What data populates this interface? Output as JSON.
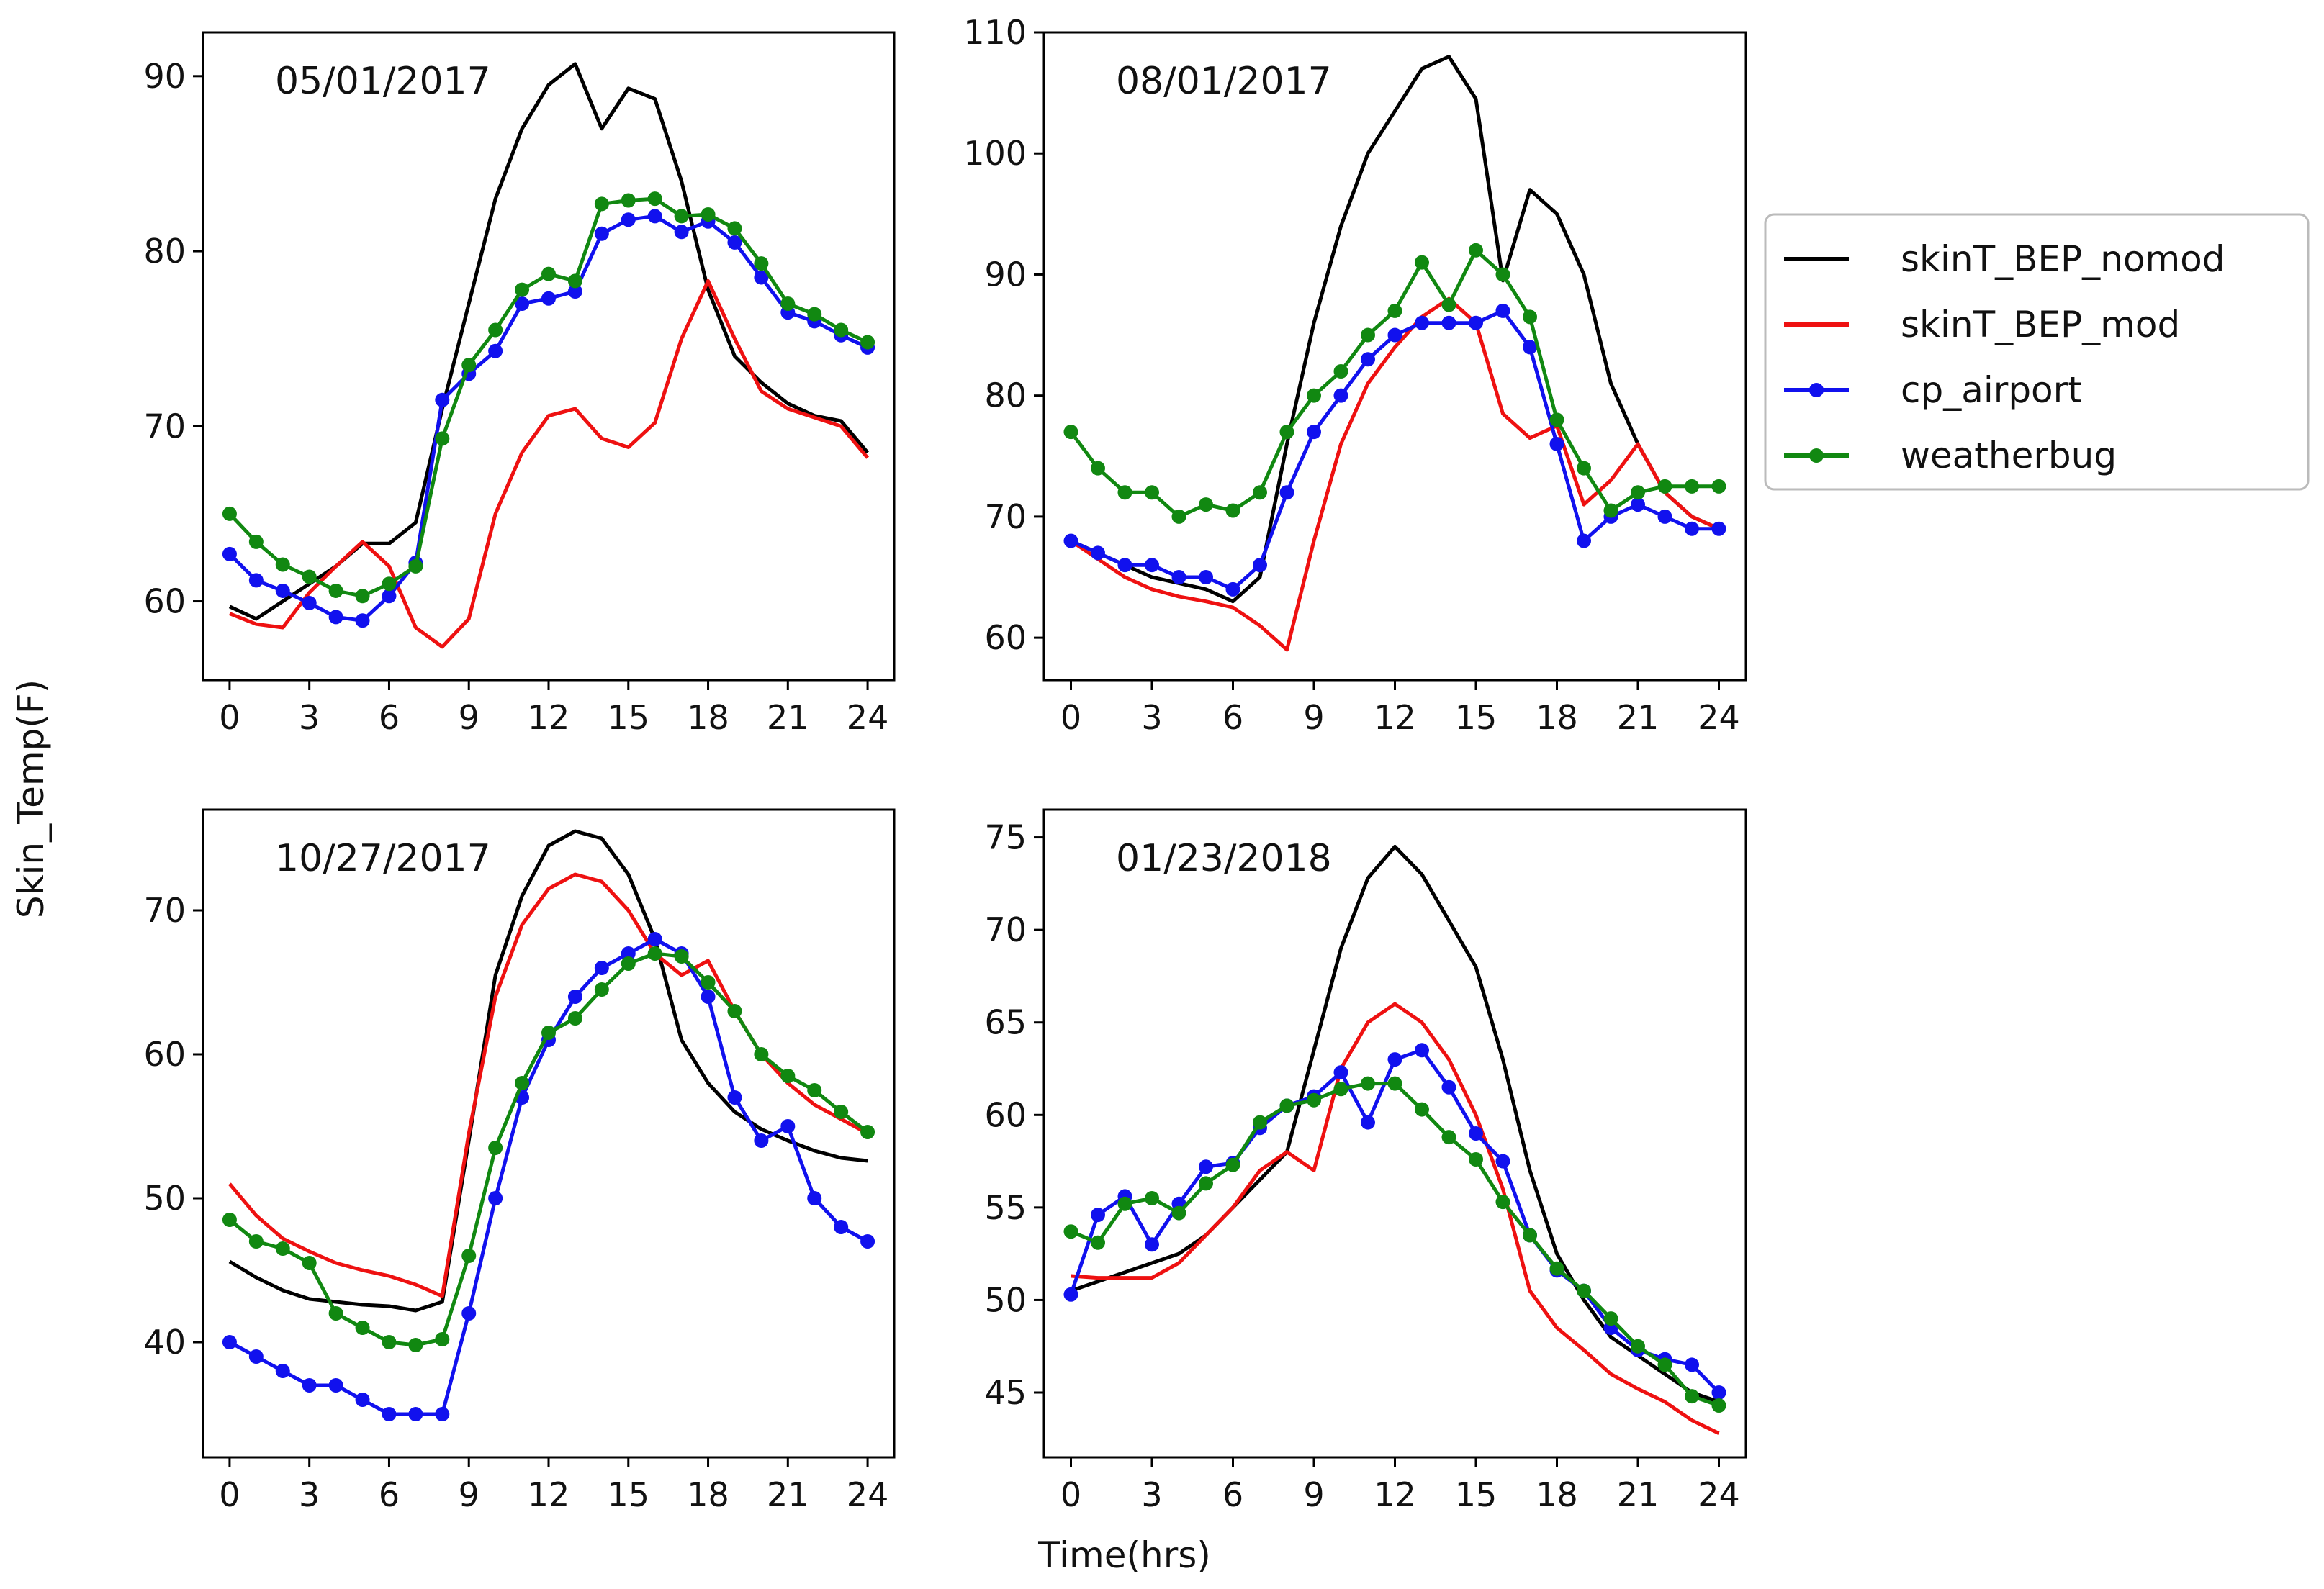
{
  "figure": {
    "ylabel": "Skin_Temp(F)",
    "xlabel": "Time(hrs)"
  },
  "legend": {
    "placement": "right",
    "entries": [
      {
        "name": "skinT_BEP_nomod",
        "color": "#000000",
        "markers": false
      },
      {
        "name": "skinT_BEP_mod",
        "color": "#ee1111",
        "markers": false
      },
      {
        "name": "cp_airport",
        "color": "#1111ee",
        "markers": true
      },
      {
        "name": "weatherbug",
        "color": "#118811",
        "markers": true
      }
    ]
  },
  "chart_data": [
    {
      "type": "line",
      "title": "05/01/2017",
      "xlabel": "",
      "ylabel": "",
      "xlim": [
        -1,
        25
      ],
      "ylim": [
        55.5,
        92.5
      ],
      "xticks": [
        0,
        3,
        6,
        9,
        12,
        15,
        18,
        21,
        24
      ],
      "yticks": [
        60,
        70,
        80,
        90
      ],
      "x": [
        0,
        1,
        2,
        3,
        4,
        5,
        6,
        7,
        8,
        9,
        10,
        11,
        12,
        13,
        14,
        15,
        16,
        17,
        18,
        19,
        20,
        21,
        22,
        23,
        24
      ],
      "series": [
        {
          "name": "skinT_BEP_nomod",
          "values": [
            59.7,
            59.0,
            60.0,
            61.0,
            62.0,
            63.3,
            63.3,
            64.5,
            71.0,
            77.0,
            83.0,
            87.0,
            89.5,
            90.7,
            87.0,
            89.3,
            88.7,
            84.0,
            77.8,
            74.0,
            72.5,
            71.3,
            70.6,
            70.3,
            68.5
          ]
        },
        {
          "name": "skinT_BEP_mod",
          "values": [
            59.3,
            58.7,
            58.5,
            60.5,
            62.0,
            63.4,
            62.0,
            58.5,
            57.4,
            59.0,
            65.0,
            68.5,
            70.6,
            71.0,
            69.3,
            68.8,
            70.2,
            75.0,
            78.3,
            75.0,
            72.0,
            71.0,
            70.5,
            70.0,
            68.2
          ]
        },
        {
          "name": "cp_airport",
          "values": [
            62.7,
            61.2,
            60.6,
            59.9,
            59.1,
            58.9,
            60.3,
            62.2,
            71.5,
            73.0,
            74.3,
            77.0,
            77.3,
            77.7,
            81.0,
            81.8,
            82.0,
            81.1,
            81.7,
            80.5,
            78.5,
            76.5,
            76.0,
            75.2,
            74.5
          ]
        },
        {
          "name": "weatherbug",
          "values": [
            65.0,
            63.4,
            62.1,
            61.4,
            60.6,
            60.3,
            61.0,
            62.0,
            69.3,
            73.5,
            75.5,
            77.8,
            78.7,
            78.3,
            82.7,
            82.9,
            83.0,
            82.0,
            82.1,
            81.3,
            79.3,
            77.0,
            76.4,
            75.5,
            74.8
          ]
        }
      ]
    },
    {
      "type": "line",
      "title": "08/01/2017",
      "xlabel": "",
      "ylabel": "",
      "xlim": [
        -1,
        25
      ],
      "ylim": [
        56.5,
        110
      ],
      "xticks": [
        0,
        3,
        6,
        9,
        12,
        15,
        18,
        21,
        24
      ],
      "yticks": [
        60,
        70,
        80,
        90,
        100,
        110
      ],
      "x": [
        0,
        1,
        2,
        3,
        4,
        5,
        6,
        7,
        8,
        9,
        10,
        11,
        12,
        13,
        14,
        15,
        16,
        17,
        18,
        19,
        20,
        21,
        22,
        23,
        24
      ],
      "series": [
        {
          "name": "skinT_BEP_nomod",
          "values": [
            68.0,
            67.0,
            66.0,
            65.0,
            64.5,
            64.0,
            63.0,
            65.0,
            76.0,
            86.0,
            94.0,
            100.0,
            103.5,
            107.0,
            108.0,
            104.5,
            89.5,
            97.0,
            95.0,
            90.0,
            81.0,
            76.0,
            72.0,
            70.0,
            69.0
          ]
        },
        {
          "name": "skinT_BEP_mod",
          "values": [
            68.0,
            66.5,
            65.0,
            64.0,
            63.4,
            63.0,
            62.5,
            61.0,
            59.0,
            68.0,
            76.0,
            81.0,
            84.0,
            86.5,
            88.0,
            86.0,
            78.5,
            76.5,
            77.5,
            71.0,
            73.0,
            76.0,
            72.0,
            70.0,
            69.0
          ]
        },
        {
          "name": "cp_airport",
          "values": [
            68.0,
            67.0,
            66.0,
            66.0,
            65.0,
            65.0,
            64.0,
            66.0,
            72.0,
            77.0,
            80.0,
            83.0,
            85.0,
            86.0,
            86.0,
            86.0,
            87.0,
            84.0,
            76.0,
            68.0,
            70.0,
            71.0,
            70.0,
            69.0,
            69.0
          ]
        },
        {
          "name": "weatherbug",
          "values": [
            77.0,
            74.0,
            72.0,
            72.0,
            70.0,
            71.0,
            70.5,
            72.0,
            77.0,
            80.0,
            82.0,
            85.0,
            87.0,
            91.0,
            87.5,
            92.0,
            90.0,
            86.5,
            78.0,
            74.0,
            70.5,
            72.0,
            72.5,
            72.5,
            72.5
          ]
        }
      ]
    },
    {
      "type": "line",
      "title": "10/27/2017",
      "xlabel": "Time(hrs)",
      "ylabel": "",
      "xlim": [
        -1,
        25
      ],
      "ylim": [
        32,
        77
      ],
      "xticks": [
        0,
        3,
        6,
        9,
        12,
        15,
        18,
        21,
        24
      ],
      "yticks": [
        40,
        50,
        60,
        70
      ],
      "x": [
        0,
        1,
        2,
        3,
        4,
        5,
        6,
        7,
        8,
        9,
        10,
        11,
        12,
        13,
        14,
        15,
        16,
        17,
        18,
        19,
        20,
        21,
        22,
        23,
        24
      ],
      "series": [
        {
          "name": "skinT_BEP_nomod",
          "values": [
            45.6,
            44.5,
            43.6,
            43.0,
            42.8,
            42.6,
            42.5,
            42.2,
            42.8,
            54.0,
            65.5,
            71.0,
            74.5,
            75.5,
            75.0,
            72.5,
            68.0,
            61.0,
            58.0,
            56.0,
            54.8,
            54.0,
            53.3,
            52.8,
            52.6
          ]
        },
        {
          "name": "skinT_BEP_mod",
          "values": [
            51.0,
            48.8,
            47.2,
            46.3,
            45.5,
            45.0,
            44.6,
            44.0,
            43.2,
            54.5,
            64.0,
            69.0,
            71.5,
            72.5,
            72.0,
            70.0,
            67.0,
            65.5,
            66.5,
            63.0,
            60.0,
            58.0,
            56.5,
            55.5,
            54.5
          ]
        },
        {
          "name": "cp_airport",
          "values": [
            40.0,
            39.0,
            38.0,
            37.0,
            37.0,
            36.0,
            35.0,
            35.0,
            35.0,
            42.0,
            50.0,
            57.0,
            61.0,
            64.0,
            66.0,
            67.0,
            68.0,
            67.0,
            64.0,
            57.0,
            54.0,
            55.0,
            50.0,
            48.0,
            47.0
          ]
        },
        {
          "name": "weatherbug",
          "values": [
            48.5,
            47.0,
            46.5,
            45.5,
            42.0,
            41.0,
            40.0,
            39.8,
            40.2,
            46.0,
            53.5,
            58.0,
            61.5,
            62.5,
            64.5,
            66.3,
            67.0,
            66.8,
            65.0,
            63.0,
            60.0,
            58.5,
            57.5,
            56.0,
            54.6
          ]
        }
      ]
    },
    {
      "type": "line",
      "title": "01/23/2018",
      "xlabel": "Time(hrs)",
      "ylabel": "",
      "xlim": [
        -1,
        25
      ],
      "ylim": [
        41.5,
        76.5
      ],
      "xticks": [
        0,
        3,
        6,
        9,
        12,
        15,
        18,
        21,
        24
      ],
      "yticks": [
        45,
        50,
        55,
        60,
        65,
        70,
        75
      ],
      "x": [
        0,
        1,
        2,
        3,
        4,
        5,
        6,
        7,
        8,
        9,
        10,
        11,
        12,
        13,
        14,
        15,
        16,
        17,
        18,
        19,
        20,
        21,
        22,
        23,
        24
      ],
      "series": [
        {
          "name": "skinT_BEP_nomod",
          "values": [
            50.5,
            51.0,
            51.5,
            52.0,
            52.5,
            53.5,
            55.0,
            56.5,
            58.0,
            63.5,
            69.0,
            72.8,
            74.5,
            73.0,
            70.5,
            68.0,
            63.0,
            57.0,
            52.5,
            50.0,
            48.0,
            47.0,
            46.0,
            45.0,
            44.5
          ]
        },
        {
          "name": "skinT_BEP_mod",
          "values": [
            51.3,
            51.2,
            51.2,
            51.2,
            52.0,
            53.5,
            55.0,
            57.0,
            58.0,
            57.0,
            62.5,
            65.0,
            66.0,
            65.0,
            63.0,
            60.0,
            56.0,
            50.5,
            48.5,
            47.3,
            46.0,
            45.2,
            44.5,
            43.5,
            42.8
          ]
        },
        {
          "name": "cp_airport",
          "values": [
            50.3,
            54.6,
            55.6,
            53.0,
            55.2,
            57.2,
            57.4,
            59.3,
            60.5,
            61.0,
            62.3,
            59.6,
            63.0,
            63.5,
            61.5,
            59.0,
            57.5,
            53.5,
            51.6,
            50.5,
            48.5,
            47.3,
            46.8,
            46.5,
            45.0
          ]
        },
        {
          "name": "weatherbug",
          "values": [
            53.7,
            53.1,
            55.2,
            55.5,
            54.7,
            56.3,
            57.3,
            59.6,
            60.5,
            60.8,
            61.4,
            61.7,
            61.7,
            60.3,
            58.8,
            57.6,
            55.3,
            53.5,
            51.7,
            50.5,
            49.0,
            47.5,
            46.5,
            44.8,
            44.3
          ]
        }
      ]
    }
  ]
}
